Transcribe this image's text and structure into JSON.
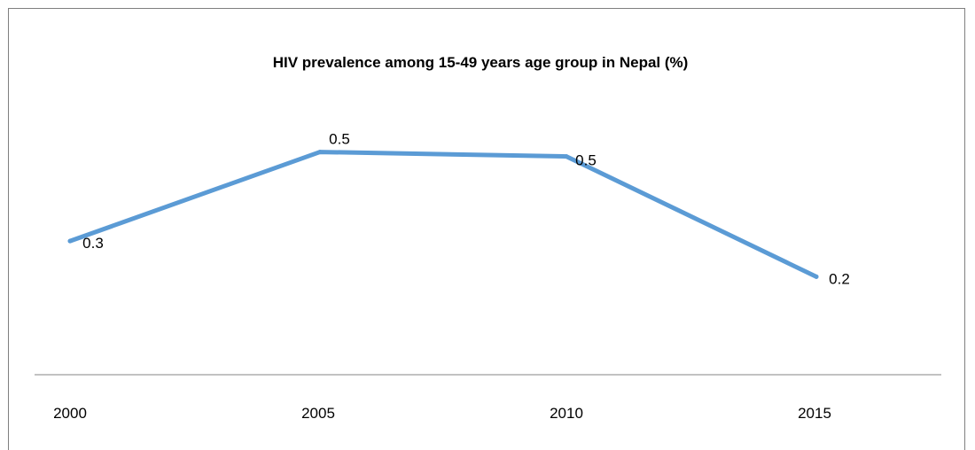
{
  "chart_data": {
    "type": "line",
    "title": "HIV prevalence among 15-49 years age group in Nepal  (%)",
    "xlabel": "",
    "ylabel": "",
    "categories": [
      "2000",
      "2005",
      "2010",
      "2015"
    ],
    "series": [
      {
        "values": [
          0.3,
          0.5,
          0.5,
          0.2
        ],
        "data_labels": [
          "0.3",
          "0.5",
          "0.5",
          "0.2"
        ],
        "color": "#5b9bd5"
      }
    ],
    "plotted_values": [
      0.3,
      0.5,
      0.49,
      0.22
    ],
    "ylim": [
      0,
      0.7
    ],
    "grid": false,
    "legend": "none",
    "axis_color": "#868686"
  }
}
